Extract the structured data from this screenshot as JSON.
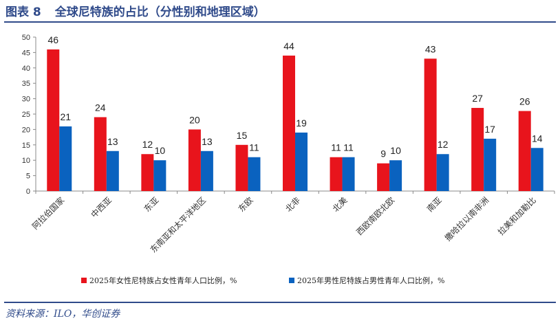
{
  "header": {
    "figure_no": "图表 8",
    "title": "全球尼特族的占比（分性别和地理区域）"
  },
  "source": "资料来源：ILO，华创证券",
  "colors": {
    "female": "#e8141c",
    "male": "#0a62bf",
    "accent": "#2f4a8a"
  },
  "chart_data": {
    "type": "bar",
    "categories": [
      "阿拉伯国家",
      "中西亚",
      "东亚",
      "东南亚和太平洋地区",
      "东欧",
      "北非",
      "北美",
      "西欧南欧北欧",
      "南亚",
      "撒哈拉以南非洲",
      "拉美和加勒比"
    ],
    "series": [
      {
        "name": "2025年女性尼特族占女性青年人口比例，%",
        "values": [
          46,
          24,
          12,
          20,
          15,
          44,
          11,
          9,
          43,
          27,
          26
        ],
        "labels": [
          "46",
          "24",
          "12",
          "20",
          "15",
          "44",
          "11",
          "9",
          "43",
          "27",
          "26"
        ]
      },
      {
        "name": "2025年男性尼特族占男性青年人口比例，%",
        "values": [
          21,
          13,
          10,
          13,
          11,
          19,
          11,
          10,
          12,
          17,
          14
        ],
        "labels": [
          "21",
          "13",
          "10",
          "13",
          "11",
          "19",
          "11",
          "10",
          "12",
          "17",
          "14"
        ]
      }
    ],
    "ylim": [
      0,
      50
    ],
    "yticks": [
      0,
      5,
      10,
      15,
      20,
      25,
      30,
      35,
      40,
      45,
      50
    ],
    "legend_position": "bottom",
    "grid": false
  }
}
